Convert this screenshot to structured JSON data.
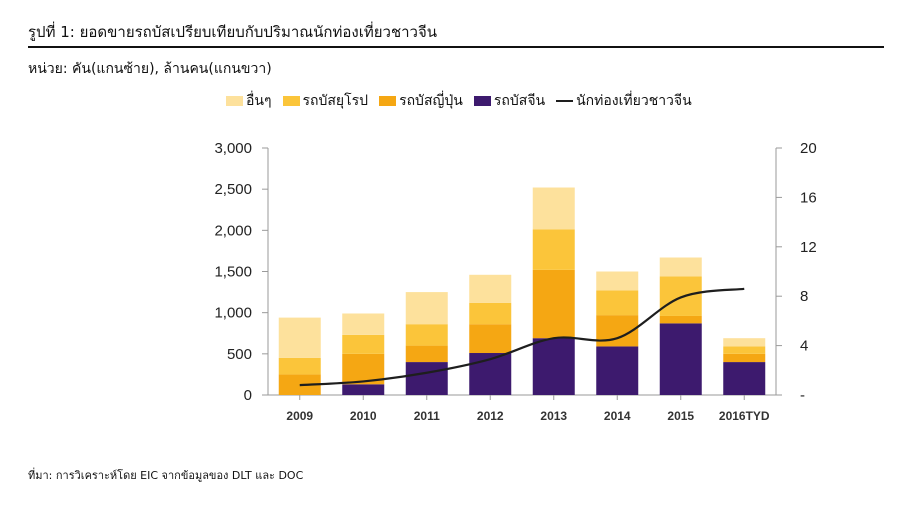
{
  "title": "รูปที่ 1: ยอดขายรถบัสเปรียบเทียบกับปริมาณนักท่องเที่ยวชาวจีน",
  "units": "หน่วย: คัน(แกนซ้าย), ล้านคน(แกนขวา)",
  "source": "ที่มา: การวิเคราะห์โดย EIC จากข้อมูลของ DLT และ DOC",
  "chart_data": {
    "type": "bar",
    "stacked": true,
    "categories": [
      "2009",
      "2010",
      "2011",
      "2012",
      "2013",
      "2014",
      "2015",
      "2016TYD"
    ],
    "series": [
      {
        "name": "รถบัสจีน",
        "color": "#3d1a6e",
        "values": [
          0,
          130,
          400,
          510,
          690,
          590,
          870,
          400
        ]
      },
      {
        "name": "รถบัสญี่ปุ่น",
        "color": "#f5a713",
        "values": [
          250,
          370,
          200,
          350,
          830,
          380,
          90,
          100
        ]
      },
      {
        "name": "รถบัสยุโรป",
        "color": "#fbc53a",
        "values": [
          200,
          230,
          260,
          260,
          490,
          300,
          480,
          90
        ]
      },
      {
        "name": "อื่นๆ",
        "color": "#fde19c",
        "values": [
          490,
          260,
          390,
          340,
          510,
          230,
          230,
          100
        ]
      }
    ],
    "line_series": {
      "name": "นักท่องเที่ยวชาวจีน",
      "axis": "right",
      "color": "#1e1e1e",
      "values": [
        0.8,
        1.1,
        1.8,
        2.9,
        4.6,
        4.6,
        7.9,
        8.6
      ]
    },
    "left_axis": {
      "ylim": [
        0,
        3000
      ],
      "ticks": [
        "0",
        "500",
        "1,000",
        "1,500",
        "2,000",
        "2,500",
        "3,000"
      ],
      "tick_values": [
        0,
        500,
        1000,
        1500,
        2000,
        2500,
        3000
      ]
    },
    "right_axis": {
      "ylim": [
        0,
        20
      ],
      "ticks": [
        "-",
        "4",
        "8",
        "12",
        "16",
        "20"
      ],
      "tick_values": [
        0,
        4,
        8,
        12,
        16,
        20
      ]
    },
    "legend_position": "top",
    "grid": false
  }
}
